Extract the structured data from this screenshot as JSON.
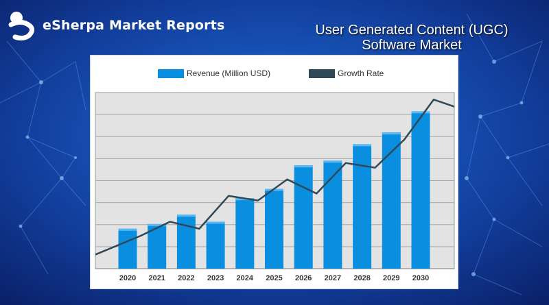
{
  "brand": {
    "name": "eSherpa Market Reports",
    "logo_icon": "esherpa-logo-icon"
  },
  "title": {
    "line1": "User Generated Content (UGC)",
    "line2": "Software Market"
  },
  "colors": {
    "bar": "#0a8fe0",
    "line": "#2f4858",
    "background": "#0d3aa0"
  },
  "chart_data": {
    "type": "bar",
    "categories": [
      "2020",
      "2021",
      "2022",
      "2023",
      "2024",
      "2025",
      "2026",
      "2027",
      "2028",
      "2029",
      "2030"
    ],
    "series": [
      {
        "name": "Revenue (Million USD)",
        "type": "bar",
        "values": [
          17,
          19,
          23,
          20,
          30,
          34,
          44,
          46,
          53,
          58,
          67
        ]
      },
      {
        "name": "Growth Rate",
        "type": "line",
        "values": [
          14,
          20,
          17,
          31,
          29,
          38,
          32,
          45,
          43,
          55,
          72
        ],
        "start": 6,
        "end": 69
      }
    ],
    "ylim": [
      0,
      75
    ],
    "grid": true,
    "legend_position": "top"
  }
}
